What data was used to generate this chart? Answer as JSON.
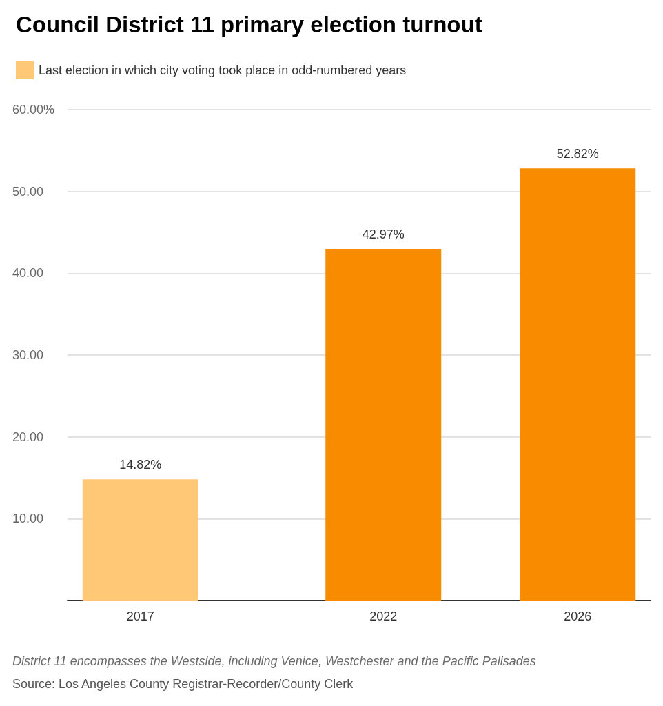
{
  "chart_data": {
    "type": "bar",
    "title": "Council District 11 primary election turnout",
    "x": [
      2017,
      2022,
      2026
    ],
    "xlim": [
      2015.5,
      2027.5
    ],
    "xticks": [
      2017,
      2022,
      2026
    ],
    "ylim": [
      0,
      60
    ],
    "yticks": [
      {
        "value": 10,
        "label": "10.00"
      },
      {
        "value": 20,
        "label": "20.00"
      },
      {
        "value": 30,
        "label": "30.00"
      },
      {
        "value": 40,
        "label": "40.00"
      },
      {
        "value": 50,
        "label": "50.00"
      },
      {
        "value": 60,
        "label": "60.00%"
      }
    ],
    "series": [
      {
        "name": "Last election in which city voting took place in odd-numbered years",
        "color": "#fec877",
        "values": [
          14.82,
          null,
          null
        ],
        "value_labels": [
          "14.82%",
          null,
          null
        ]
      },
      {
        "color": "#f98b00",
        "values": [
          null,
          42.97,
          52.82
        ],
        "value_labels": [
          null,
          "42.97%",
          "52.82%"
        ]
      }
    ],
    "grid": "y",
    "legend": "top left",
    "annotations": [
      "District 11 encompasses the Westside, including Venice, Westchester and the Pacific Palisades",
      "Source: Los Angeles County Registrar-Recorder/County Clerk"
    ]
  }
}
